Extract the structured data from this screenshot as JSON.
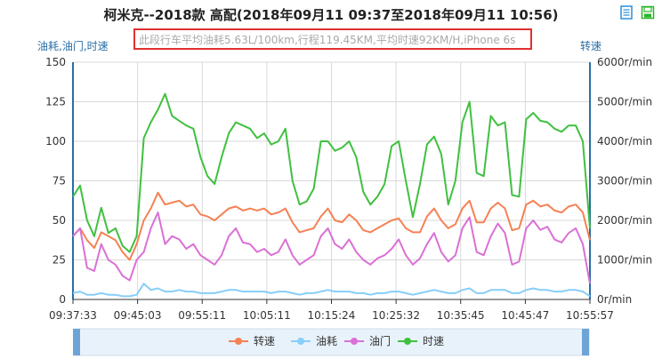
{
  "title": "柯米克--2018款 高配(2018年09月11 09:37至2018年09月11 10:56)",
  "subtitle": "此段行车平均油耗5.63L/100km,行程119.45KM,平均时速92KM/H,iPhone 6s",
  "toolbox": {
    "data_view_icon": "data-view-icon",
    "save_icon": "save-image-icon"
  },
  "colors": {
    "speed": "#40c040",
    "rpm": "#f58154",
    "fuel": "#87cefa",
    "throttle": "#da70d6",
    "axis": "#2a6ea7"
  },
  "chart_data": {
    "type": "line",
    "y_left": {
      "label": "油耗,油门,时速",
      "range": [
        0,
        150
      ],
      "ticks": [
        "0",
        "25",
        "50",
        "75",
        "100",
        "125",
        "150"
      ]
    },
    "y_right": {
      "label": "转速",
      "range": [
        0,
        6000
      ],
      "ticks": [
        "0r/min",
        "1000r/min",
        "2000r/min",
        "3000r/min",
        "4000r/min",
        "5000r/min",
        "6000r/min"
      ]
    },
    "x_ticks": [
      "09:37:33",
      "09:45:03",
      "09:55:11",
      "10:05:11",
      "10:15:24",
      "10:25:32",
      "10:35:45",
      "10:45:47",
      "10:55:57"
    ],
    "legend": [
      "转速",
      "油耗",
      "油门",
      "时速"
    ],
    "legend_position": "bottom",
    "grid": true,
    "series": [
      {
        "name": "时速",
        "axis": "left",
        "color": "#40c040",
        "values": [
          65,
          72,
          50,
          40,
          58,
          42,
          45,
          34,
          30,
          40,
          102,
          112,
          120,
          130,
          116,
          113,
          110,
          108,
          90,
          78,
          73,
          90,
          105,
          112,
          110,
          108,
          102,
          105,
          98,
          100,
          108,
          75,
          60,
          62,
          70,
          100,
          100,
          94,
          96,
          100,
          90,
          68,
          60,
          65,
          73,
          97,
          100,
          75,
          52,
          73,
          98,
          103,
          92,
          60,
          75,
          112,
          125,
          80,
          78,
          116,
          110,
          112,
          66,
          65,
          114,
          118,
          113,
          112,
          108,
          106,
          110,
          110,
          100,
          45
        ]
      },
      {
        "name": "转速",
        "axis": "right",
        "color": "#f58154",
        "values": [
          1600,
          1800,
          1500,
          1300,
          1700,
          1600,
          1500,
          1200,
          1000,
          1400,
          2000,
          2300,
          2700,
          2400,
          2450,
          2500,
          2350,
          2400,
          2150,
          2100,
          2000,
          2150,
          2300,
          2350,
          2250,
          2300,
          2250,
          2300,
          2150,
          2200,
          2300,
          1950,
          1700,
          1750,
          1800,
          2100,
          2300,
          2000,
          1950,
          2150,
          2000,
          1750,
          1700,
          1800,
          1900,
          2000,
          2050,
          1800,
          1700,
          1700,
          2100,
          2300,
          2000,
          1800,
          1900,
          2300,
          2500,
          1950,
          1950,
          2300,
          2450,
          2300,
          1750,
          1800,
          2400,
          2500,
          2350,
          2400,
          2250,
          2200,
          2350,
          2400,
          2200,
          1500
        ]
      },
      {
        "name": "油门",
        "axis": "left",
        "color": "#da70d6",
        "values": [
          40,
          45,
          20,
          18,
          35,
          25,
          22,
          15,
          12,
          25,
          30,
          45,
          55,
          35,
          40,
          38,
          32,
          35,
          28,
          25,
          22,
          28,
          40,
          45,
          36,
          35,
          30,
          32,
          28,
          30,
          38,
          28,
          22,
          25,
          28,
          40,
          45,
          35,
          32,
          38,
          30,
          25,
          22,
          26,
          28,
          32,
          38,
          28,
          22,
          26,
          35,
          42,
          30,
          24,
          28,
          45,
          52,
          30,
          28,
          40,
          48,
          42,
          22,
          24,
          45,
          50,
          44,
          46,
          38,
          36,
          42,
          45,
          35,
          10
        ]
      },
      {
        "name": "油耗",
        "axis": "left",
        "color": "#87cefa",
        "values": [
          4,
          5,
          3,
          3,
          4,
          3,
          3,
          2,
          2,
          3,
          10,
          6,
          7,
          5,
          5,
          6,
          5,
          5,
          4,
          4,
          4,
          5,
          6,
          6,
          5,
          5,
          5,
          5,
          4,
          5,
          5,
          4,
          3,
          4,
          4,
          5,
          6,
          5,
          5,
          5,
          4,
          4,
          3,
          4,
          4,
          5,
          5,
          4,
          3,
          4,
          5,
          6,
          5,
          4,
          4,
          6,
          7,
          4,
          4,
          6,
          6,
          6,
          4,
          4,
          6,
          7,
          6,
          6,
          5,
          5,
          6,
          6,
          5,
          2
        ]
      }
    ]
  }
}
